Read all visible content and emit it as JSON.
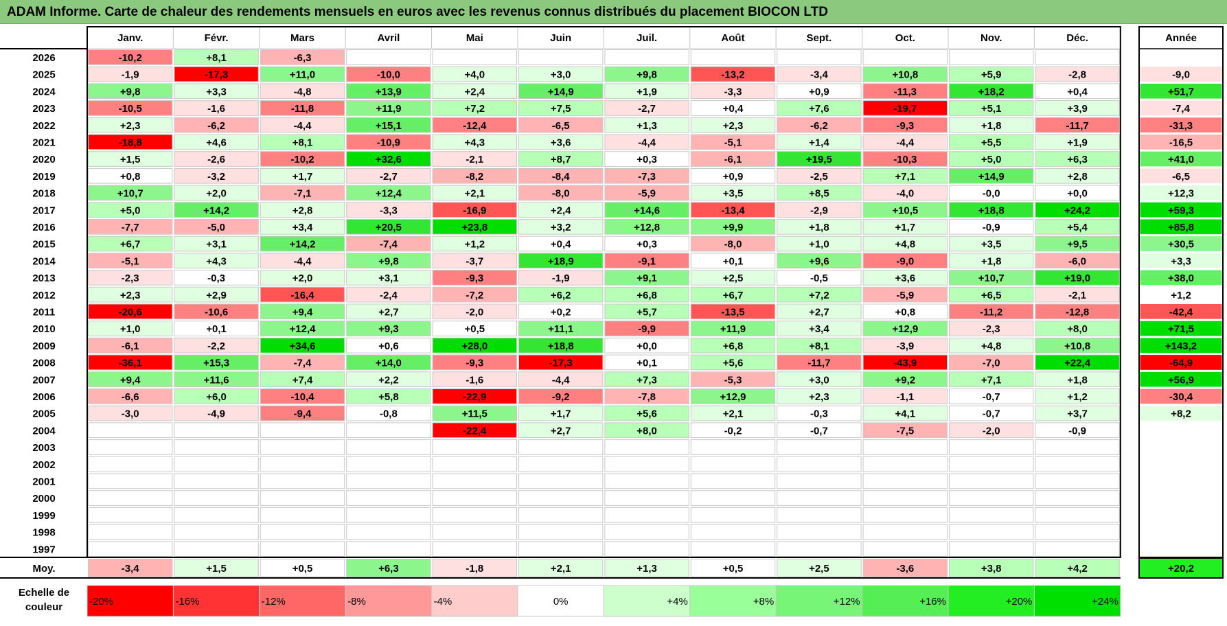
{
  "title": "ADAM Informe. Carte de chaleur des rendements mensuels en euros avec les revenus connus distribués du placement BIOCON LTD",
  "chart_data": {
    "type": "heatmap",
    "months": [
      "Janv.",
      "Févr.",
      "Mars",
      "Avril",
      "Mai",
      "Juin",
      "Juil.",
      "Août",
      "Sept.",
      "Oct.",
      "Nov.",
      "Déc."
    ],
    "year_header": "Année",
    "rows": [
      {
        "year": "2026",
        "values": [
          "-10,2",
          "+8,1",
          "-6,3",
          "",
          "",
          "",
          "",
          "",
          "",
          "",
          "",
          ""
        ],
        "annual": ""
      },
      {
        "year": "2025",
        "values": [
          "-1,9",
          "-17,3",
          "+11,0",
          "-10,0",
          "+4,0",
          "+3,0",
          "+9,8",
          "-13,2",
          "-3,4",
          "+10,8",
          "+5,9",
          "-2,8"
        ],
        "annual": "-9,0"
      },
      {
        "year": "2024",
        "values": [
          "+9,8",
          "+3,3",
          "-4,8",
          "+13,9",
          "+2,4",
          "+14,9",
          "+1,9",
          "-3,3",
          "+0,9",
          "-11,3",
          "+18,2",
          "+0,4"
        ],
        "annual": "+51,7"
      },
      {
        "year": "2023",
        "values": [
          "-10,5",
          "-1,6",
          "-11,8",
          "+11,9",
          "+7,2",
          "+7,5",
          "-2,7",
          "+0,4",
          "+7,6",
          "-19,7",
          "+5,1",
          "+3,9"
        ],
        "annual": "-7,4"
      },
      {
        "year": "2022",
        "values": [
          "+2,3",
          "-6,2",
          "-4,4",
          "+15,1",
          "-12,4",
          "-6,5",
          "+1,3",
          "+2,3",
          "-6,2",
          "-9,3",
          "+1,8",
          "-11,7"
        ],
        "annual": "-31,3"
      },
      {
        "year": "2021",
        "values": [
          "-18,8",
          "+4,6",
          "+8,1",
          "-10,9",
          "+4,3",
          "+3,6",
          "-4,4",
          "-5,1",
          "+1,4",
          "-4,4",
          "+5,5",
          "+1,9"
        ],
        "annual": "-16,5"
      },
      {
        "year": "2020",
        "values": [
          "+1,5",
          "-2,6",
          "-10,2",
          "+32,6",
          "-2,1",
          "+8,7",
          "+0,3",
          "-6,1",
          "+19,5",
          "-10,3",
          "+5,0",
          "+6,3"
        ],
        "annual": "+41,0"
      },
      {
        "year": "2019",
        "values": [
          "+0,8",
          "-3,2",
          "+1,7",
          "-2,7",
          "-8,2",
          "-8,4",
          "-7,3",
          "+0,9",
          "-2,5",
          "+7,1",
          "+14,9",
          "+2,8"
        ],
        "annual": "-6,5"
      },
      {
        "year": "2018",
        "values": [
          "+10,7",
          "+2,0",
          "-7,1",
          "+12,4",
          "+2,1",
          "-8,0",
          "-5,9",
          "+3,5",
          "+8,5",
          "-4,0",
          "-0,0",
          "+0,0"
        ],
        "annual": "+12,3"
      },
      {
        "year": "2017",
        "values": [
          "+5,0",
          "+14,2",
          "+2,8",
          "-3,3",
          "-16,9",
          "+2,4",
          "+14,6",
          "-13,4",
          "-2,9",
          "+10,5",
          "+18,8",
          "+24,2"
        ],
        "annual": "+59,3"
      },
      {
        "year": "2016",
        "values": [
          "-7,7",
          "-5,0",
          "+3,4",
          "+20,5",
          "+23,8",
          "+3,2",
          "+12,8",
          "+9,9",
          "+1,8",
          "+1,7",
          "-0,9",
          "+5,4"
        ],
        "annual": "+85,8"
      },
      {
        "year": "2015",
        "values": [
          "+6,7",
          "+3,1",
          "+14,2",
          "-7,4",
          "+1,2",
          "+0,4",
          "+0,3",
          "-8,0",
          "+1,0",
          "+4,8",
          "+3,5",
          "+9,5"
        ],
        "annual": "+30,5"
      },
      {
        "year": "2014",
        "values": [
          "-5,1",
          "+4,3",
          "-4,4",
          "+9,8",
          "-3,7",
          "+18,9",
          "-9,1",
          "+0,1",
          "+9,6",
          "-9,0",
          "+1,8",
          "-6,0"
        ],
        "annual": "+3,3"
      },
      {
        "year": "2013",
        "values": [
          "-2,3",
          "-0,3",
          "+2,0",
          "+3,1",
          "-9,3",
          "-1,9",
          "+9,1",
          "+2,5",
          "-0,5",
          "+3,6",
          "+10,7",
          "+19,0"
        ],
        "annual": "+38,0"
      },
      {
        "year": "2012",
        "values": [
          "+2,3",
          "+2,9",
          "-16,4",
          "-2,4",
          "-7,2",
          "+6,2",
          "+6,8",
          "+6,7",
          "+7,2",
          "-5,9",
          "+6,5",
          "-2,1"
        ],
        "annual": "+1,2"
      },
      {
        "year": "2011",
        "values": [
          "-20,6",
          "-10,6",
          "+9,4",
          "+2,7",
          "-2,0",
          "+0,2",
          "+5,7",
          "-13,5",
          "+2,7",
          "+0,8",
          "-11,2",
          "-12,8"
        ],
        "annual": "-42,4"
      },
      {
        "year": "2010",
        "values": [
          "+1,0",
          "+0,1",
          "+12,4",
          "+9,3",
          "+0,5",
          "+11,1",
          "-9,9",
          "+11,9",
          "+3,4",
          "+12,9",
          "-2,3",
          "+8,0"
        ],
        "annual": "+71,5"
      },
      {
        "year": "2009",
        "values": [
          "-6,1",
          "-2,2",
          "+34,6",
          "+0,6",
          "+28,0",
          "+18,8",
          "+0,0",
          "+6,8",
          "+8,1",
          "-3,9",
          "+4,8",
          "+10,8"
        ],
        "annual": "+143,2"
      },
      {
        "year": "2008",
        "values": [
          "-36,1",
          "+15,3",
          "-7,4",
          "+14,0",
          "-9,3",
          "-17,3",
          "+0,1",
          "+5,6",
          "-11,7",
          "-43,9",
          "-7,0",
          "+22,4"
        ],
        "annual": "-64,9"
      },
      {
        "year": "2007",
        "values": [
          "+9,4",
          "+11,6",
          "+7,4",
          "+2,2",
          "-1,6",
          "-4,4",
          "+7,3",
          "-5,3",
          "+3,0",
          "+9,2",
          "+7,1",
          "+1,8"
        ],
        "annual": "+56,9"
      },
      {
        "year": "2006",
        "values": [
          "-6,6",
          "+6,0",
          "-10,4",
          "+5,8",
          "-22,9",
          "-9,2",
          "-7,8",
          "+12,9",
          "+2,3",
          "-1,1",
          "-0,7",
          "+1,2"
        ],
        "annual": "-30,4"
      },
      {
        "year": "2005",
        "values": [
          "-3,0",
          "-4,9",
          "-9,4",
          "-0,8",
          "+11,5",
          "+1,7",
          "+5,6",
          "+2,1",
          "-0,3",
          "+4,1",
          "-0,7",
          "+3,7"
        ],
        "annual": "+8,2"
      },
      {
        "year": "2004",
        "values": [
          "",
          "",
          "",
          "",
          "-22,4",
          "+2,7",
          "+8,0",
          "-0,2",
          "-0,7",
          "-7,5",
          "-2,0",
          "-0,9"
        ],
        "annual": ""
      },
      {
        "year": "2003",
        "values": [
          "",
          "",
          "",
          "",
          "",
          "",
          "",
          "",
          "",
          "",
          "",
          ""
        ],
        "annual": ""
      },
      {
        "year": "2002",
        "values": [
          "",
          "",
          "",
          "",
          "",
          "",
          "",
          "",
          "",
          "",
          "",
          ""
        ],
        "annual": ""
      },
      {
        "year": "2001",
        "values": [
          "",
          "",
          "",
          "",
          "",
          "",
          "",
          "",
          "",
          "",
          "",
          ""
        ],
        "annual": ""
      },
      {
        "year": "2000",
        "values": [
          "",
          "",
          "",
          "",
          "",
          "",
          "",
          "",
          "",
          "",
          "",
          ""
        ],
        "annual": ""
      },
      {
        "year": "1999",
        "values": [
          "",
          "",
          "",
          "",
          "",
          "",
          "",
          "",
          "",
          "",
          "",
          ""
        ],
        "annual": ""
      },
      {
        "year": "1998",
        "values": [
          "",
          "",
          "",
          "",
          "",
          "",
          "",
          "",
          "",
          "",
          "",
          ""
        ],
        "annual": ""
      },
      {
        "year": "1997",
        "values": [
          "",
          "",
          "",
          "",
          "",
          "",
          "",
          "",
          "",
          "",
          "",
          ""
        ],
        "annual": ""
      }
    ],
    "average": {
      "label": "Moy.",
      "values": [
        "-3,4",
        "+1,5",
        "+0,5",
        "+6,3",
        "-1,8",
        "+2,1",
        "+1,3",
        "+0,5",
        "+2,5",
        "-3,6",
        "+3,8",
        "+4,2"
      ],
      "annual": "+20,2"
    },
    "scale": {
      "label_line1": "Echelle de",
      "label_line2": "couleur",
      "steps": [
        {
          "label": "-20%",
          "color": "#ff0000",
          "align": "left"
        },
        {
          "label": "-16%",
          "color": "#ff3333",
          "align": "left"
        },
        {
          "label": "-12%",
          "color": "#ff6666",
          "align": "left"
        },
        {
          "label": "-8%",
          "color": "#ff9999",
          "align": "left"
        },
        {
          "label": "-4%",
          "color": "#ffcccc",
          "align": "left"
        },
        {
          "label": "0%",
          "color": "#ffffff",
          "align": "center"
        },
        {
          "label": "+4%",
          "color": "#ccffcc",
          "align": "right"
        },
        {
          "label": "+8%",
          "color": "#99ff99",
          "align": "right"
        },
        {
          "label": "+12%",
          "color": "#77f577",
          "align": "right"
        },
        {
          "label": "+16%",
          "color": "#55ee55",
          "align": "right"
        },
        {
          "label": "+20%",
          "color": "#22ee22",
          "align": "right"
        },
        {
          "label": "+24%",
          "color": "#00e000",
          "align": "right"
        }
      ]
    }
  },
  "colors": {
    "title_bar": "#8bc97e",
    "grid": "#c8c8c8",
    "border": "#000000"
  }
}
